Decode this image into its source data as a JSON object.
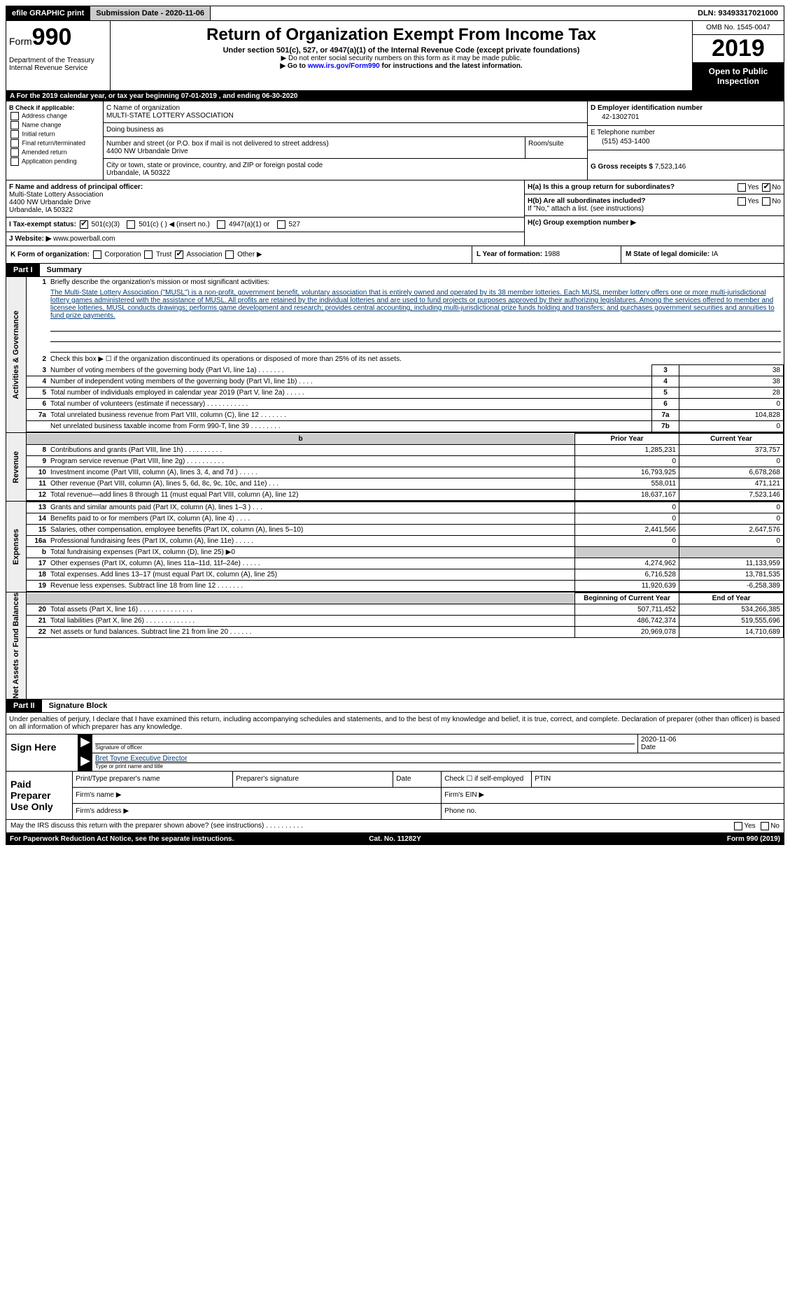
{
  "top": {
    "efile": "efile GRAPHIC print",
    "subdate_label": "Submission Date - ",
    "subdate": "2020-11-06",
    "dln_label": "DLN: ",
    "dln": "93493317021000"
  },
  "header": {
    "form_label": "Form",
    "form_num": "990",
    "dept": "Department of the Treasury\nInternal Revenue Service",
    "title": "Return of Organization Exempt From Income Tax",
    "sub": "Under section 501(c), 527, or 4947(a)(1) of the Internal Revenue Code (except private foundations)",
    "note1": "▶ Do not enter social security numbers on this form as it may be made public.",
    "note2_a": "▶ Go to ",
    "note2_link": "www.irs.gov/Form990",
    "note2_b": " for instructions and the latest information.",
    "omb": "OMB No. 1545-0047",
    "year": "2019",
    "open_pub": "Open to Public Inspection"
  },
  "row_a": {
    "text": "For the 2019 calendar year, or tax year beginning 07-01-2019    , and ending 06-30-2020"
  },
  "b": {
    "label": "B Check if applicable:",
    "opts": [
      "Address change",
      "Name change",
      "Initial return",
      "Final return/terminated",
      "Amended return",
      "Application pending"
    ]
  },
  "c": {
    "name_label": "C Name of organization",
    "name": "MULTI-STATE LOTTERY ASSOCIATION",
    "dba_label": "Doing business as",
    "dba": "",
    "street_label": "Number and street (or P.O. box if mail is not delivered to street address)",
    "street": "4400 NW Urbandale Drive",
    "room_label": "Room/suite",
    "city_label": "City or town, state or province, country, and ZIP or foreign postal code",
    "city": "Urbandale, IA  50322"
  },
  "d": {
    "ein_label": "D Employer identification number",
    "ein": "42-1302701",
    "tel_label": "E Telephone number",
    "tel": "(515) 453-1400",
    "gross_label": "G Gross receipts $ ",
    "gross": "7,523,146"
  },
  "f": {
    "label": "F  Name and address of principal officer:",
    "name": "Multi-State Lottery Association",
    "addr1": "4400 NW Urbandale Drive",
    "addr2": "Urbandale, IA  50322"
  },
  "i": {
    "label": "I  Tax-exempt status:",
    "o1": "501(c)(3)",
    "o2": "501(c) (  ) ◀ (insert no.)",
    "o3": "4947(a)(1) or",
    "o4": "527"
  },
  "j": {
    "label": "J  Website: ▶",
    "val": "www.powerball.com"
  },
  "h": {
    "ha_label": "H(a)  Is this a group return for subordinates?",
    "hb_label": "H(b)  Are all subordinates included?",
    "hb_note": "If \"No,\" attach a list. (see instructions)",
    "hc_label": "H(c)  Group exemption number ▶"
  },
  "k": {
    "label": "K Form of organization:",
    "opts": [
      "Corporation",
      "Trust",
      "Association",
      "Other ▶"
    ],
    "l_label": "L Year of formation: ",
    "l_val": "1988",
    "m_label": "M State of legal domicile: ",
    "m_val": "IA"
  },
  "part1": {
    "tag": "Part I",
    "title": "Summary",
    "q1": "Briefly describe the organization's mission or most significant activities:",
    "desc": "The Multi-State Lottery Association (\"MUSL\") is a non-profit, government benefit, voluntary association that is entirely owned and operated by its 38 member lotteries. Each MUSL member lottery offers one or more multi-jurisdictional lottery games administered with the assistance of MUSL. All profits are retained by the individual lotteries and are used to fund projects or purposes approved by their authorizing legislatures. Among the services offered to member and licensee lotteries, MUSL conducts drawings; performs game development and research; provides central accounting, including multi-jurisdictional prize funds holding and transfers; and purchases government securities and annuities to fund prize payments.",
    "q2": "Check this box ▶ ☐ if the organization discontinued its operations or disposed of more than 25% of its net assets.",
    "rows_gov": [
      {
        "n": "3",
        "label": "Number of voting members of the governing body (Part VI, line 1a)   .    .    .    .    .    .    .",
        "box": "3",
        "val": "38"
      },
      {
        "n": "4",
        "label": "Number of independent voting members of the governing body (Part VI, line 1b)   .    .    .    .",
        "box": "4",
        "val": "38"
      },
      {
        "n": "5",
        "label": "Total number of individuals employed in calendar year 2019 (Part V, line 2a)   .    .    .    .    .",
        "box": "5",
        "val": "28"
      },
      {
        "n": "6",
        "label": "Total number of volunteers (estimate if necessary)   .    .    .    .    .    .    .    .    .    .    .",
        "box": "6",
        "val": "0"
      },
      {
        "n": "7a",
        "label": "Total unrelated business revenue from Part VIII, column (C), line 12   .    .    .    .    .    .    .",
        "box": "7a",
        "val": "104,828"
      },
      {
        "n": "",
        "label": "Net unrelated business taxable income from Form 990-T, line 39   .    .    .    .    .    .    .    .",
        "box": "7b",
        "val": "0"
      }
    ],
    "hdr_prior": "Prior Year",
    "hdr_curr": "Current Year",
    "rows_rev": [
      {
        "n": "8",
        "label": "Contributions and grants (Part VIII, line 1h)   .    .    .    .    .    .    .    .    .    .",
        "prior": "1,285,231",
        "curr": "373,757"
      },
      {
        "n": "9",
        "label": "Program service revenue (Part VIII, line 2g)   .    .    .    .    .    .    .    .    .    .",
        "prior": "0",
        "curr": "0"
      },
      {
        "n": "10",
        "label": "Investment income (Part VIII, column (A), lines 3, 4, and 7d )   .    .    .    .    .",
        "prior": "16,793,925",
        "curr": "6,678,268"
      },
      {
        "n": "11",
        "label": "Other revenue (Part VIII, column (A), lines 5, 6d, 8c, 9c, 10c, and 11e)   .    .    .",
        "prior": "558,011",
        "curr": "471,121"
      },
      {
        "n": "12",
        "label": "Total revenue—add lines 8 through 11 (must equal Part VIII, column (A), line 12)",
        "prior": "18,637,167",
        "curr": "7,523,146"
      }
    ],
    "rows_exp": [
      {
        "n": "13",
        "label": "Grants and similar amounts paid (Part IX, column (A), lines 1–3 )   .    .    .",
        "prior": "0",
        "curr": "0"
      },
      {
        "n": "14",
        "label": "Benefits paid to or for members (Part IX, column (A), line 4)   .    .    .    .",
        "prior": "0",
        "curr": "0"
      },
      {
        "n": "15",
        "label": "Salaries, other compensation, employee benefits (Part IX, column (A), lines 5–10)",
        "prior": "2,441,566",
        "curr": "2,647,576"
      },
      {
        "n": "16a",
        "label": "Professional fundraising fees (Part IX, column (A), line 11e)   .    .    .    .    .",
        "prior": "0",
        "curr": "0"
      },
      {
        "n": "b",
        "label": "Total fundraising expenses (Part IX, column (D), line 25) ▶0",
        "prior": "grey",
        "curr": "grey"
      },
      {
        "n": "17",
        "label": "Other expenses (Part IX, column (A), lines 11a–11d, 11f–24e)   .    .    .    .    .",
        "prior": "4,274,962",
        "curr": "11,133,959"
      },
      {
        "n": "18",
        "label": "Total expenses. Add lines 13–17 (must equal Part IX, column (A), line 25)",
        "prior": "6,716,528",
        "curr": "13,781,535"
      },
      {
        "n": "19",
        "label": "Revenue less expenses. Subtract line 18 from line 12   .    .    .    .    .    .    .",
        "prior": "11,920,639",
        "curr": "-6,258,389"
      }
    ],
    "hdr_beg": "Beginning of Current Year",
    "hdr_end": "End of Year",
    "rows_net": [
      {
        "n": "20",
        "label": "Total assets (Part X, line 16)   .    .    .    .    .    .    .    .    .    .    .    .    .    .",
        "prior": "507,711,452",
        "curr": "534,266,385"
      },
      {
        "n": "21",
        "label": "Total liabilities (Part X, line 26)   .    .    .    .    .    .    .    .    .    .    .    .    .",
        "prior": "486,742,374",
        "curr": "519,555,696"
      },
      {
        "n": "22",
        "label": "Net assets or fund balances. Subtract line 21 from line 20   .    .    .    .    .    .",
        "prior": "20,969,078",
        "curr": "14,710,689"
      }
    ]
  },
  "part2": {
    "tag": "Part II",
    "title": "Signature Block",
    "decl": "Under penalties of perjury, I declare that I have examined this return, including accompanying schedules and statements, and to the best of my knowledge and belief, it is true, correct, and complete. Declaration of preparer (other than officer) is based on all information of which preparer has any knowledge.",
    "sign_here": "Sign Here",
    "sig_officer": "Signature of officer",
    "sig_date": "2020-11-06",
    "date_label": "Date",
    "sig_name": "Bret Toyne  Executive Director",
    "sig_name_label": "Type or print name and title",
    "paid_label": "Paid Preparer Use Only",
    "prep_name": "Print/Type preparer's name",
    "prep_sig": "Preparer's signature",
    "prep_date": "Date",
    "prep_check": "Check ☐ if self-employed",
    "prep_ptin": "PTIN",
    "firm_name": "Firm's name   ▶",
    "firm_ein": "Firm's EIN ▶",
    "firm_addr": "Firm's address ▶",
    "firm_phone": "Phone no."
  },
  "footer": {
    "discuss": "May the IRS discuss this return with the preparer shown above? (see instructions)   .    .    .    .    .    .    .    .    .    .",
    "yes": "Yes",
    "no": "No",
    "paperwork": "For Paperwork Reduction Act Notice, see the separate instructions.",
    "cat": "Cat. No. 11282Y",
    "form": "Form 990 (2019)"
  }
}
